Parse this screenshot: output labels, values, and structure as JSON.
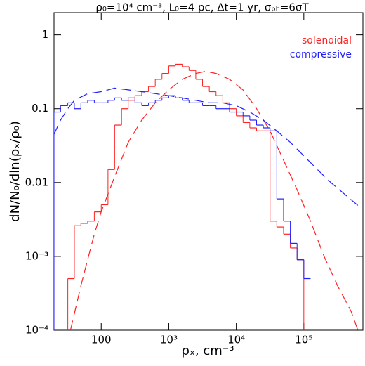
{
  "chart_data": {
    "type": "line",
    "title": "ρ₀=10⁴ cm⁻³, L₀=4 pc, Δt=1 yr, σₚₕ=6σT",
    "x_label": "ρₓ, cm⁻³",
    "y_label": "dN/N₀/dln(ρₓ/ρ₀)",
    "xscale": "log",
    "yscale": "log",
    "xlim": [
      20,
      750000
    ],
    "ylim": [
      0.0001,
      2
    ],
    "xticks": [
      100,
      {
        "value": 1000,
        "label": "10³"
      },
      {
        "value": 10000,
        "label": "10⁴"
      },
      {
        "value": 100000,
        "label": "10⁵"
      }
    ],
    "yticks": [
      1,
      0.1,
      0.01,
      {
        "value": 0.001,
        "label": "10⁻³"
      },
      {
        "value": 0.0001,
        "label": "10⁻⁴"
      }
    ],
    "legend": "upper right",
    "series": [
      {
        "name": "solenoidal",
        "color": "#ff2020",
        "style": "step",
        "bins": [
          20,
          25,
          32,
          40,
          50,
          63,
          79,
          100,
          126,
          158,
          200,
          251,
          316,
          398,
          501,
          631,
          794,
          1000,
          1259,
          1585,
          1995,
          2512,
          3162,
          3981,
          5012,
          6310,
          7943,
          10000,
          12589,
          15849,
          19953,
          25119,
          31623,
          39811,
          50119,
          63096,
          79433,
          100000,
          125893
        ],
        "values": [
          null,
          null,
          0.0005,
          0.0026,
          0.0028,
          0.003,
          0.004,
          0.005,
          0.015,
          0.06,
          0.1,
          0.13,
          0.15,
          0.17,
          0.2,
          0.25,
          0.3,
          0.38,
          0.4,
          0.37,
          0.33,
          0.25,
          0.2,
          0.17,
          0.15,
          0.12,
          0.1,
          0.08,
          0.065,
          0.055,
          0.05,
          0.05,
          0.003,
          0.0025,
          0.002,
          0.0013,
          0.0009,
          null
        ]
      },
      {
        "name": "compressive",
        "color": "#2020ff",
        "style": "step",
        "bins": [
          20,
          25,
          32,
          40,
          50,
          63,
          79,
          100,
          126,
          158,
          200,
          251,
          316,
          398,
          501,
          631,
          794,
          1000,
          1259,
          1585,
          1995,
          2512,
          3162,
          3981,
          5012,
          6310,
          7943,
          10000,
          12589,
          15849,
          19953,
          25119,
          31623,
          39811,
          50119,
          63096,
          79433,
          100000,
          125893
        ],
        "values": [
          0.09,
          0.11,
          0.12,
          0.1,
          0.12,
          0.13,
          0.12,
          0.12,
          0.13,
          0.14,
          0.13,
          0.14,
          0.12,
          0.11,
          0.12,
          0.13,
          0.14,
          0.15,
          0.14,
          0.13,
          0.12,
          0.12,
          0.11,
          0.11,
          0.1,
          0.1,
          0.09,
          0.09,
          0.08,
          0.07,
          0.06,
          0.055,
          0.05,
          0.006,
          0.003,
          0.0015,
          0.0009,
          0.0005
        ]
      },
      {
        "color": "#ff2020",
        "style": "dashed",
        "x": [
          35,
          50,
          63,
          79,
          100,
          158,
          251,
          398,
          631,
          1000,
          1585,
          2512,
          3548,
          5012,
          7943,
          12589,
          19953,
          31623,
          50119,
          79433,
          125893,
          199526,
          316228,
          501187,
          630957
        ],
        "values": [
          0.0001,
          0.0004,
          0.0009,
          0.002,
          0.004,
          0.012,
          0.035,
          0.07,
          0.12,
          0.18,
          0.25,
          0.3,
          0.32,
          0.3,
          0.25,
          0.18,
          0.1,
          0.05,
          0.02,
          0.008,
          0.003,
          0.001,
          0.0004,
          0.00018,
          0.0001
        ]
      },
      {
        "color": "#2020ff",
        "style": "dashed",
        "x": [
          20,
          25,
          32,
          40,
          63,
          100,
          158,
          251,
          398,
          631,
          1000,
          1585,
          2512,
          3981,
          6310,
          10000,
          15849,
          25119,
          39811,
          63096,
          100000,
          158489,
          251189,
          398107,
          630957
        ],
        "values": [
          0.045,
          0.07,
          0.1,
          0.13,
          0.16,
          0.17,
          0.19,
          0.18,
          0.17,
          0.16,
          0.15,
          0.14,
          0.13,
          0.12,
          0.12,
          0.11,
          0.09,
          0.07,
          0.05,
          0.035,
          0.023,
          0.015,
          0.01,
          0.007,
          0.0049
        ]
      }
    ]
  }
}
